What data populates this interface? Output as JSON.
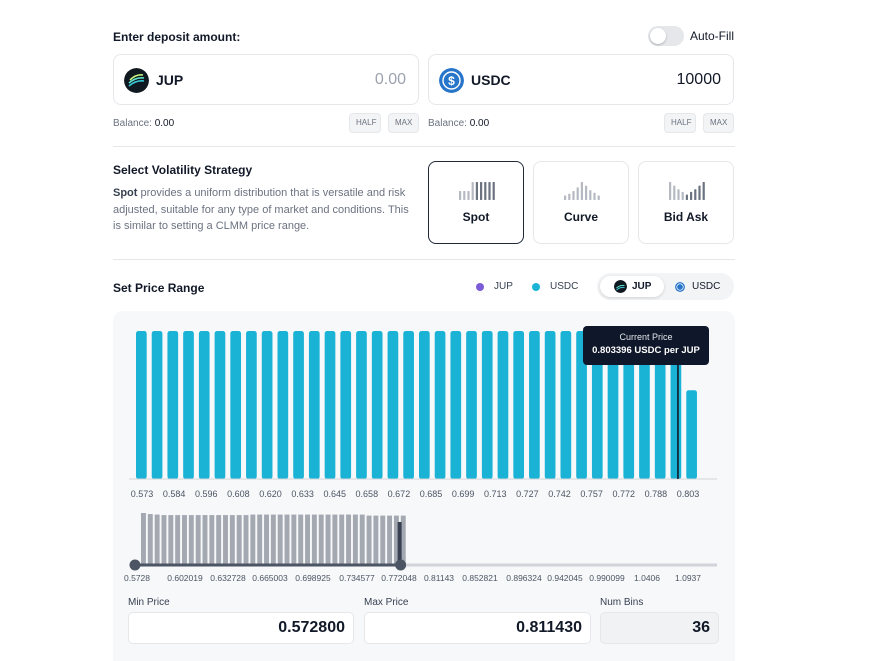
{
  "deposit": {
    "title": "Enter deposit amount:",
    "autofill_label": "Auto-Fill",
    "token_a": {
      "symbol": "JUP",
      "amount": "0.00",
      "balance_label": "Balance:",
      "balance": "0.00",
      "half": "HALF",
      "max": "MAX"
    },
    "token_b": {
      "symbol": "USDC",
      "amount": "10000",
      "balance_label": "Balance:",
      "balance": "0.00",
      "half": "HALF",
      "max": "MAX"
    }
  },
  "strategy": {
    "title": "Select Volatility Strategy",
    "desc_bold": "Spot",
    "desc_rest": " provides a uniform distribution that is versatile and risk adjusted, suitable for any type of market and conditions. This is similar to setting a CLMM price range.",
    "options": [
      {
        "name": "Spot",
        "active": true
      },
      {
        "name": "Curve",
        "active": false
      },
      {
        "name": "Bid Ask",
        "active": false
      }
    ]
  },
  "price_range": {
    "title": "Set Price Range",
    "legend": [
      {
        "label": "JUP",
        "color": "#7c5cd6"
      },
      {
        "label": "USDC",
        "color": "#1ab3d6"
      }
    ],
    "toggle": {
      "a": "JUP",
      "b": "USDC",
      "selected": "JUP"
    },
    "tooltip_title": "Current Price",
    "tooltip_value": "0.803396 USDC per JUP",
    "main_ticks": [
      "0.573",
      "0.584",
      "0.596",
      "0.608",
      "0.620",
      "0.633",
      "0.645",
      "0.658",
      "0.672",
      "0.685",
      "0.699",
      "0.713",
      "0.727",
      "0.742",
      "0.757",
      "0.772",
      "0.788",
      "0.803"
    ],
    "mini_ticks": [
      "0.5728",
      "0.602019",
      "0.632728",
      "0.665003",
      "0.698925",
      "0.734577",
      "0.772048",
      "0.81143",
      "0.852821",
      "0.896324",
      "0.942045",
      "0.990099",
      "1.0406",
      "1.0937"
    ],
    "min_label": "Min Price",
    "min_value": "0.572800",
    "max_label": "Max Price",
    "max_value": "0.811430",
    "bins_label": "Num Bins",
    "bins_value": "36"
  },
  "chart_data": {
    "type": "bar",
    "series": [
      {
        "name": "USDC",
        "color": "#1ab3d6",
        "values": [
          1,
          1,
          1,
          1,
          1,
          1,
          1,
          1,
          1,
          1,
          1,
          1,
          1,
          1,
          1,
          1,
          1,
          1,
          1,
          1,
          1,
          1,
          1,
          1,
          1,
          1,
          1,
          1,
          1,
          1,
          1,
          1,
          1,
          1,
          1,
          0.6
        ]
      }
    ],
    "bin_count": 36,
    "current_price": 0.803396,
    "xlim": [
      0.5728,
      0.81143
    ],
    "mini_series": [
      1.0,
      0.98,
      0.97,
      0.96,
      0.96,
      0.96,
      0.96,
      0.96,
      0.96,
      0.96,
      0.96,
      0.96,
      0.96,
      0.96,
      0.96,
      0.96,
      0.97,
      0.97,
      0.97,
      0.97,
      0.97,
      0.97,
      0.97,
      0.97,
      0.97,
      0.97,
      0.97,
      0.97,
      0.97,
      0.97,
      0.97,
      0.97,
      0.97,
      0.95,
      0.95,
      0.95,
      0.95,
      0.95,
      0.95
    ],
    "mini_range": [
      0.5728,
      1.0937
    ],
    "selected_range": [
      0.5728,
      0.81143
    ]
  },
  "colors": {
    "usdc_bar": "#1ab3d6",
    "mini_bar": "#a3a8b1",
    "handle": "#4b5563",
    "tooltip_bg": "#0f172a"
  }
}
